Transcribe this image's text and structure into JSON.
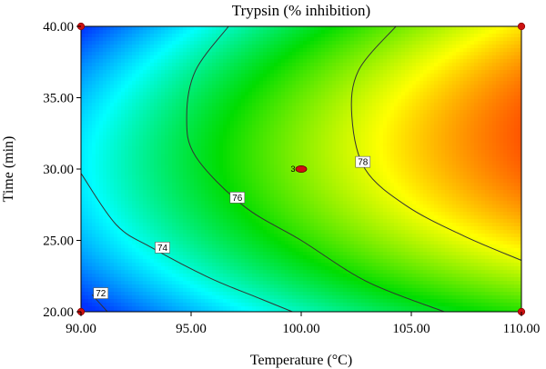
{
  "chart_data": {
    "type": "heatmap",
    "subtype": "contour",
    "title": "Trypsin (% inhibition)",
    "xlabel": "Temperature (°C)",
    "ylabel": "Time (min)",
    "xlim": [
      90,
      110
    ],
    "ylim": [
      20,
      40
    ],
    "x_ticks": [
      "90.00",
      "95.00",
      "100.00",
      "105.00",
      "110.00"
    ],
    "y_ticks": [
      "20.00",
      "25.00",
      "30.00",
      "35.00",
      "40.00"
    ],
    "colormap": [
      "#0033ff",
      "#00ffff",
      "#00dd00",
      "#ffff00",
      "#ff0000"
    ],
    "contours": [
      {
        "level": 72,
        "label": "72",
        "points": [
          [
            90.5,
            21.2
          ],
          [
            91.2,
            20.0
          ]
        ]
      },
      {
        "level": 74,
        "label": "74",
        "points": [
          [
            90.0,
            29.7
          ],
          [
            91.6,
            26.1
          ],
          [
            93.2,
            24.5
          ],
          [
            95.8,
            22.4
          ],
          [
            98.0,
            21.0
          ],
          [
            99.6,
            20.0
          ]
        ]
      },
      {
        "level": 76,
        "label": "76",
        "points": [
          [
            96.7,
            40.0
          ],
          [
            95.2,
            36.9
          ],
          [
            94.8,
            33.7
          ],
          [
            95.2,
            30.9
          ],
          [
            97.4,
            27.4
          ],
          [
            100.0,
            25.0
          ],
          [
            103.0,
            22.1
          ],
          [
            106.5,
            20.0
          ]
        ]
      },
      {
        "level": 78,
        "label": "78",
        "points": [
          [
            104.3,
            40.0
          ],
          [
            102.6,
            36.9
          ],
          [
            102.3,
            33.7
          ],
          [
            102.9,
            30.0
          ],
          [
            104.8,
            27.4
          ],
          [
            107.4,
            25.3
          ],
          [
            110.0,
            23.6
          ]
        ]
      }
    ],
    "contour_label_positions": [
      {
        "label": "72",
        "x": 90.9,
        "y": 21.3
      },
      {
        "label": "74",
        "x": 93.7,
        "y": 24.5
      },
      {
        "label": "76",
        "x": 97.1,
        "y": 28.0
      },
      {
        "label": "78",
        "x": 102.8,
        "y": 30.5
      }
    ],
    "design_points": [
      {
        "x": 90,
        "y": 40,
        "label": ""
      },
      {
        "x": 110,
        "y": 40,
        "label": ""
      },
      {
        "x": 90,
        "y": 20,
        "label": ""
      },
      {
        "x": 110,
        "y": 20,
        "label": ""
      },
      {
        "x": 100,
        "y": 30,
        "label": "3"
      }
    ],
    "point_color": "#cc1111"
  }
}
